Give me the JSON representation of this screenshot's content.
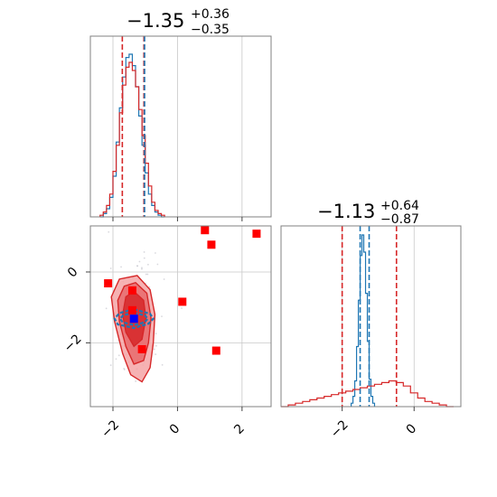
{
  "figure": {
    "type": "corner-plot",
    "colors": {
      "posterior_a": "#1f77b4",
      "posterior_b": "#d62728",
      "marker_red": "#ff0000",
      "marker_blue": "#0000ff",
      "grid": "#c8c8c8",
      "frame": "#808080"
    }
  },
  "chart_data": [
    {
      "id": "hist_param_1",
      "type": "histogram",
      "title": {
        "value": "−1.35",
        "sup": "+0.36",
        "sub": "−0.35"
      },
      "xlim": [
        -2.7,
        2.9
      ],
      "xticks": [
        -2,
        0,
        2
      ],
      "grid": true,
      "quantile_lines": {
        "series_a": [
          -1.02
        ],
        "series_b": [
          -1.71,
          -1.04
        ]
      },
      "series": [
        {
          "color": "#1f77b4",
          "bin_edges": [
            -2.4,
            -2.3,
            -2.2,
            -2.1,
            -2.0,
            -1.9,
            -1.8,
            -1.7,
            -1.6,
            -1.5,
            -1.4,
            -1.3,
            -1.2,
            -1.1,
            -1.0,
            -0.9,
            -0.8,
            -0.7,
            -0.6,
            -0.5,
            -0.4
          ],
          "heights": [
            0.0,
            0.02,
            0.05,
            0.12,
            0.25,
            0.46,
            0.67,
            0.86,
            0.98,
            1.0,
            0.93,
            0.8,
            0.62,
            0.44,
            0.27,
            0.14,
            0.07,
            0.03,
            0.01,
            0.0
          ]
        },
        {
          "color": "#d62728",
          "bin_edges": [
            -2.4,
            -2.3,
            -2.2,
            -2.1,
            -2.0,
            -1.9,
            -1.8,
            -1.7,
            -1.6,
            -1.5,
            -1.4,
            -1.3,
            -1.2,
            -1.1,
            -1.0,
            -0.9,
            -0.8,
            -0.7,
            -0.6,
            -0.5,
            -0.4
          ],
          "heights": [
            0.01,
            0.03,
            0.07,
            0.14,
            0.28,
            0.44,
            0.64,
            0.81,
            0.92,
            0.95,
            0.9,
            0.8,
            0.66,
            0.5,
            0.33,
            0.19,
            0.09,
            0.04,
            0.02,
            0.01
          ]
        }
      ]
    },
    {
      "id": "hist_param_2",
      "type": "histogram",
      "title": {
        "value": "−1.13",
        "sup": "+0.64",
        "sub": "−0.87"
      },
      "xlim": [
        -3.7,
        1.3
      ],
      "xticks": [
        -2,
        0
      ],
      "grid": true,
      "quantile_lines": {
        "series_a": [
          -1.5,
          -1.25
        ],
        "series_b": [
          -2.0,
          -0.49
        ]
      },
      "series": [
        {
          "color": "#1f77b4",
          "bin_edges": [
            -1.75,
            -1.7,
            -1.65,
            -1.6,
            -1.55,
            -1.5,
            -1.45,
            -1.4,
            -1.35,
            -1.3,
            -1.25,
            -1.2,
            -1.15,
            -1.1
          ],
          "heights": [
            0.02,
            0.06,
            0.15,
            0.35,
            0.62,
            0.88,
            1.0,
            0.9,
            0.66,
            0.38,
            0.16,
            0.06,
            0.02
          ]
        },
        {
          "color": "#d62728",
          "bin_edges": [
            -3.7,
            -3.5,
            -3.3,
            -3.1,
            -2.9,
            -2.7,
            -2.5,
            -2.3,
            -2.1,
            -1.9,
            -1.7,
            -1.5,
            -1.3,
            -1.1,
            -0.9,
            -0.7,
            -0.5,
            -0.3,
            -0.1,
            0.1,
            0.3,
            0.5,
            0.7,
            0.9,
            1.1
          ],
          "heights": [
            0.0,
            0.01,
            0.02,
            0.03,
            0.04,
            0.05,
            0.06,
            0.07,
            0.08,
            0.09,
            0.1,
            0.11,
            0.12,
            0.13,
            0.14,
            0.15,
            0.14,
            0.12,
            0.08,
            0.05,
            0.03,
            0.02,
            0.01,
            0.0
          ]
        }
      ]
    },
    {
      "id": "joint_param_1_2",
      "type": "scatter",
      "xlim": [
        -2.7,
        2.9
      ],
      "ylim": [
        -3.8,
        1.3
      ],
      "xticks": [
        -2,
        0,
        2
      ],
      "yticks": [
        -2,
        0
      ],
      "grid": true,
      "red_markers": [
        {
          "x": -2.15,
          "y": -0.32
        },
        {
          "x": -1.4,
          "y": -0.52
        },
        {
          "x": -1.4,
          "y": -1.08
        },
        {
          "x": -1.1,
          "y": -2.18
        },
        {
          "x": 0.15,
          "y": -0.84
        },
        {
          "x": 0.85,
          "y": 1.18
        },
        {
          "x": 1.05,
          "y": 0.77
        },
        {
          "x": 1.2,
          "y": -2.22
        },
        {
          "x": 2.45,
          "y": 1.08
        }
      ],
      "blue_marker": {
        "x": -1.35,
        "y": -1.32
      },
      "contours_b": [
        [
          [
            -1.25,
            -0.1
          ],
          [
            -0.85,
            -0.5
          ],
          [
            -0.7,
            -1.2
          ],
          [
            -0.75,
            -2.0
          ],
          [
            -0.85,
            -2.7
          ],
          [
            -1.1,
            -3.1
          ],
          [
            -1.45,
            -2.9
          ],
          [
            -1.7,
            -2.3
          ],
          [
            -1.95,
            -1.4
          ],
          [
            -2.05,
            -0.7
          ],
          [
            -1.8,
            -0.2
          ]
        ],
        [
          [
            -1.3,
            -0.3
          ],
          [
            -0.95,
            -0.6
          ],
          [
            -0.82,
            -1.3
          ],
          [
            -0.9,
            -2.0
          ],
          [
            -1.05,
            -2.5
          ],
          [
            -1.35,
            -2.6
          ],
          [
            -1.6,
            -2.1
          ],
          [
            -1.8,
            -1.4
          ],
          [
            -1.85,
            -0.8
          ],
          [
            -1.65,
            -0.4
          ]
        ],
        [
          [
            -1.35,
            -0.55
          ],
          [
            -1.05,
            -0.8
          ],
          [
            -0.98,
            -1.3
          ],
          [
            -1.1,
            -1.9
          ],
          [
            -1.35,
            -2.1
          ],
          [
            -1.6,
            -1.7
          ],
          [
            -1.7,
            -1.2
          ],
          [
            -1.6,
            -0.7
          ]
        ]
      ],
      "contours_a": [
        [
          [
            -1.35,
            -1.05
          ],
          [
            -0.85,
            -1.18
          ],
          [
            -0.75,
            -1.32
          ],
          [
            -0.9,
            -1.46
          ],
          [
            -1.35,
            -1.58
          ],
          [
            -1.85,
            -1.48
          ],
          [
            -1.95,
            -1.32
          ],
          [
            -1.8,
            -1.16
          ]
        ],
        [
          [
            -1.35,
            -1.15
          ],
          [
            -1.0,
            -1.23
          ],
          [
            -0.92,
            -1.32
          ],
          [
            -1.02,
            -1.42
          ],
          [
            -1.35,
            -1.5
          ],
          [
            -1.7,
            -1.42
          ],
          [
            -1.78,
            -1.32
          ],
          [
            -1.68,
            -1.22
          ]
        ]
      ]
    }
  ]
}
